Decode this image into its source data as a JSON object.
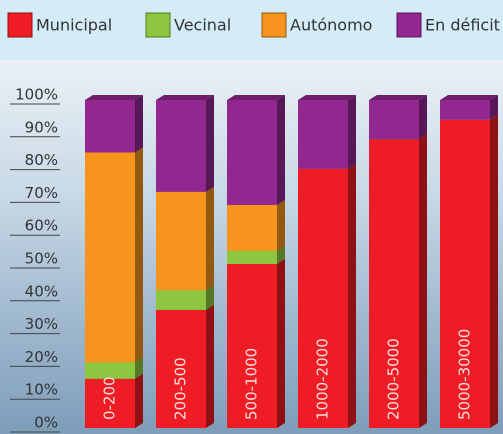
{
  "chart_data": {
    "type": "bar",
    "stacked": true,
    "categories": [
      "0-200",
      "200-500",
      "500-1000",
      "1000-2000",
      "2000-5000",
      "5000-30000"
    ],
    "series": [
      {
        "name": "Municipal",
        "color": "#ee1c24",
        "values": [
          15,
          36,
          50,
          79,
          88,
          94
        ]
      },
      {
        "name": "Vecinal",
        "color": "#8dc63f",
        "values": [
          5,
          6,
          4,
          0,
          0,
          0
        ]
      },
      {
        "name": "Autónomo",
        "color": "#f7941d",
        "values": [
          64,
          30,
          14,
          0,
          0,
          0
        ]
      },
      {
        "name": "En déficit",
        "color": "#92278f",
        "values": [
          16,
          28,
          32,
          21,
          12,
          6
        ]
      }
    ],
    "ylim": [
      0,
      100
    ],
    "yticks": [
      {
        "value": 0,
        "label": "0%"
      },
      {
        "value": 10,
        "label": "10%"
      },
      {
        "value": 20,
        "label": "20%"
      },
      {
        "value": 30,
        "label": "30%"
      },
      {
        "value": 40,
        "label": "40%"
      },
      {
        "value": 50,
        "label": "50%"
      },
      {
        "value": 60,
        "label": "60%"
      },
      {
        "value": 70,
        "label": "70%"
      },
      {
        "value": 80,
        "label": "80%"
      },
      {
        "value": 90,
        "label": "90%"
      },
      {
        "value": 100,
        "label": "100%"
      }
    ]
  }
}
